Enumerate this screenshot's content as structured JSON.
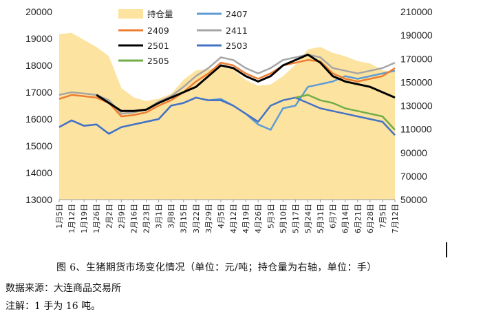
{
  "chart_data": {
    "type": "line",
    "left_axis": {
      "min": 13000,
      "max": 20000,
      "ticks": [
        13000,
        14000,
        15000,
        16000,
        17000,
        18000,
        19000,
        20000
      ]
    },
    "right_axis": {
      "min": 50000,
      "max": 210000,
      "ticks": [
        50000,
        70000,
        90000,
        110000,
        130000,
        150000,
        170000,
        190000,
        210000
      ]
    },
    "x_tick_labels": [
      "1月5日",
      "1月12日",
      "1月19日",
      "1月26日",
      "2月2日",
      "2月9日",
      "2月16日",
      "2月23日",
      "3月1日",
      "3月8日",
      "3月15日",
      "3月22日",
      "3月29日",
      "4月5日",
      "4月12日",
      "4月19日",
      "4月26日",
      "5月3日",
      "5月10日",
      "5月17日",
      "5月24日",
      "5月31日",
      "6月7日",
      "6月14日",
      "6月21日",
      "6月28日",
      "7月5日",
      "7月12日"
    ],
    "x_tick_display": [
      "1月5日",
      "1月12日",
      "1月19日",
      "1月26日",
      "2月2日",
      "2月9日",
      "2月16日",
      "2月23日",
      "3月1日",
      "3月8日",
      "3月15日",
      "3月22日",
      "3月29日",
      "4月5日",
      "4月12日",
      "4月19日",
      "4月26日",
      "5月3日",
      "5月10日",
      "5月17日",
      "5月24日",
      "5月31日",
      "6月7日",
      "6月14日",
      "6月21日",
      "6月28日",
      "7月5日",
      "7月12日"
    ],
    "legend_position": "top",
    "grid": false,
    "series": [
      {
        "name": "持仓量",
        "kind": "area",
        "axis": "right",
        "color": "#FDE3A0",
        "x": [
          0,
          1,
          2,
          3,
          4,
          5,
          6,
          7,
          8,
          9,
          10,
          11,
          12,
          13,
          14,
          15,
          16,
          17,
          18,
          19,
          20,
          21,
          22,
          23,
          24,
          25,
          26,
          27
        ],
        "values": [
          191000,
          192000,
          186000,
          180000,
          172000,
          145000,
          137000,
          134000,
          136000,
          140000,
          152000,
          160000,
          161000,
          163000,
          161000,
          152000,
          147000,
          148000,
          155000,
          165000,
          178000,
          180000,
          175000,
          172000,
          168000,
          166000,
          160000,
          159000
        ]
      },
      {
        "name": "2407",
        "color": "#5B9BD5",
        "axis": "left",
        "x": [
          0,
          1,
          2,
          3,
          4,
          5,
          6,
          7,
          8,
          9,
          10,
          11,
          12,
          13,
          14,
          15,
          16,
          17,
          18,
          19,
          20,
          21,
          22,
          23,
          24,
          25,
          26,
          27
        ],
        "values": [
          15700,
          15950,
          15750,
          15800,
          15450,
          15700,
          15800,
          15900,
          16000,
          16500,
          16600,
          16800,
          16700,
          16750,
          16500,
          16200,
          15800,
          15600,
          16400,
          16500,
          17200,
          17300,
          17400,
          17600,
          17500,
          17600,
          17700,
          17800
        ]
      },
      {
        "name": "2409",
        "color": "#ED7D31",
        "axis": "left",
        "x": [
          0,
          1,
          2,
          3,
          4,
          5,
          6,
          7,
          8,
          9,
          10,
          11,
          12,
          13,
          14,
          15,
          16,
          17,
          18,
          19,
          20,
          21,
          22,
          23,
          24,
          25,
          26,
          27
        ],
        "values": [
          16750,
          16900,
          16850,
          16800,
          16600,
          16100,
          16150,
          16250,
          16500,
          16700,
          17000,
          17400,
          17700,
          18100,
          18000,
          17700,
          17500,
          17700,
          18000,
          18100,
          18200,
          18150,
          17700,
          17500,
          17400,
          17500,
          17600,
          17900
        ]
      },
      {
        "name": "2411",
        "color": "#A5A5A5",
        "axis": "left",
        "x": [
          0,
          1,
          2,
          3,
          4,
          5,
          6,
          7,
          8,
          9,
          10,
          11,
          12,
          13,
          14,
          15,
          16,
          17,
          18,
          19,
          20,
          21,
          22,
          23,
          24,
          25,
          26,
          27
        ],
        "values": [
          16900,
          17000,
          16950,
          16900,
          16700,
          16200,
          16250,
          16350,
          16650,
          16850,
          17200,
          17600,
          17900,
          18300,
          18200,
          17900,
          17700,
          17900,
          18200,
          18300,
          18400,
          18300,
          17900,
          17800,
          17700,
          17800,
          17900,
          18100
        ]
      },
      {
        "name": "2501",
        "color": "#000000",
        "axis": "left",
        "x": [
          3,
          4,
          5,
          6,
          7,
          8,
          9,
          10,
          11,
          12,
          13,
          14,
          15,
          16,
          17,
          18,
          19,
          20,
          21,
          22,
          23,
          24,
          25,
          26,
          27
        ],
        "values": [
          16900,
          16600,
          16300,
          16300,
          16350,
          16600,
          16800,
          17000,
          17200,
          17600,
          18000,
          17900,
          17600,
          17400,
          17600,
          18000,
          18200,
          18400,
          18100,
          17600,
          17400,
          17300,
          17200,
          17000,
          16800
        ]
      },
      {
        "name": "2503",
        "color": "#4472C4",
        "axis": "left",
        "x": [
          0,
          1,
          2,
          3,
          4,
          5,
          6,
          7,
          8,
          9,
          10,
          11,
          12,
          13,
          14,
          15,
          16,
          17,
          18,
          19,
          20,
          21,
          22,
          23,
          24,
          25,
          26,
          27
        ],
        "values": [
          15700,
          15950,
          15750,
          15800,
          15450,
          15700,
          15800,
          15900,
          16000,
          16500,
          16600,
          16800,
          16700,
          16700,
          16500,
          16200,
          15900,
          16500,
          16700,
          16800,
          16600,
          16400,
          16300,
          16200,
          16100,
          16000,
          15900,
          15400
        ]
      },
      {
        "name": "2505",
        "color": "#70AD47",
        "axis": "left",
        "x": [
          19,
          20,
          21,
          22,
          23,
          24,
          25,
          26,
          27
        ],
        "values": [
          16800,
          16900,
          16700,
          16600,
          16400,
          16300,
          16200,
          16100,
          15600
        ]
      }
    ]
  },
  "legend": [
    {
      "name": "持仓量",
      "kind": "area",
      "color": "#FDE3A0"
    },
    {
      "name": "2407",
      "kind": "line",
      "color": "#5B9BD5"
    },
    {
      "name": "2409",
      "kind": "line",
      "color": "#ED7D31"
    },
    {
      "name": "2411",
      "kind": "line",
      "color": "#A5A5A5"
    },
    {
      "name": "2501",
      "kind": "line",
      "color": "#000000"
    },
    {
      "name": "2503",
      "kind": "line",
      "color": "#4472C4"
    },
    {
      "name": "2505",
      "kind": "line",
      "color": "#70AD47"
    }
  ],
  "caption": {
    "title": "图 6、生猪期货市场变化情况（单位：元/吨；持仓量为右轴，单位：手）",
    "source": "数据来源：大连商品交易所",
    "note": "注解：1 手为 16 吨。"
  }
}
